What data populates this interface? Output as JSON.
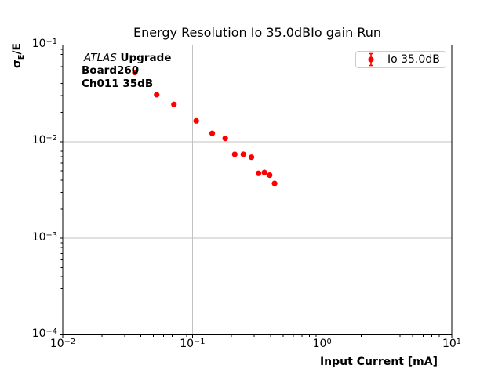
{
  "chart_data": {
    "type": "scatter",
    "title": "Energy Resolution Io 35.0dBIo gain Run",
    "xlabel": "Input Current [mA]",
    "ylabel": "σ_E/E",
    "ylabel_parts": {
      "base": "σ",
      "sub": "E",
      "rest": "/E"
    },
    "xscale": "log",
    "yscale": "log",
    "xlim": [
      0.01,
      10
    ],
    "ylim": [
      0.0001,
      0.1
    ],
    "x_tick_exponents": [
      -2,
      -1,
      0,
      1
    ],
    "y_tick_exponents": [
      -1,
      -2,
      -3,
      -4
    ],
    "grid": true,
    "legend": {
      "label": "Io 35.0dB",
      "position": "upper right",
      "marker": "errorbar-dot"
    },
    "series": [
      {
        "name": "Io 35.0dB",
        "color": "#ff0000",
        "x": [
          0.036,
          0.053,
          0.072,
          0.107,
          0.142,
          0.179,
          0.212,
          0.247,
          0.285,
          0.323,
          0.359,
          0.394,
          0.43
        ],
        "y": [
          0.052,
          0.0306,
          0.0243,
          0.0164,
          0.0122,
          0.0108,
          0.0074,
          0.0074,
          0.0069,
          0.0047,
          0.0048,
          0.0045,
          0.0037
        ]
      }
    ],
    "annotation": {
      "line1_italic": "ATLAS",
      "line1_bold": " Upgrade",
      "line2": "Board260",
      "line3": "Ch011 35dB"
    },
    "colors": {
      "marker": "#ff0000",
      "grid": "#c2c2c2",
      "spine": "#000000",
      "legend_border": "#cccccc"
    }
  }
}
